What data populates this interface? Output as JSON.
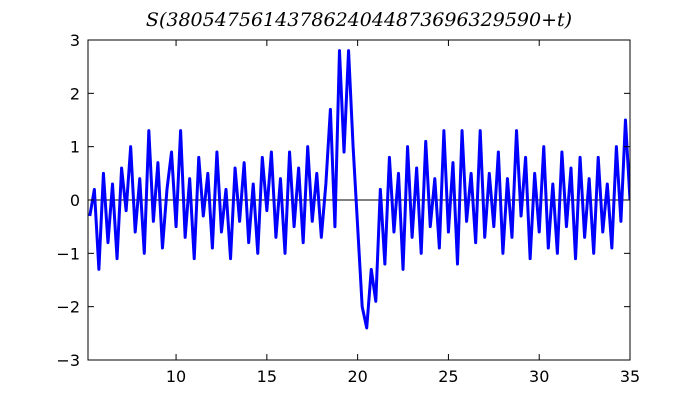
{
  "chart_data": {
    "type": "line",
    "title": "S(3805475614378624044873696329590+t)",
    "x": [
      5.25,
      5.5,
      5.75,
      6,
      6.25,
      6.5,
      6.75,
      7,
      7.25,
      7.5,
      7.75,
      8,
      8.25,
      8.5,
      8.75,
      9,
      9.25,
      9.5,
      9.75,
      10,
      10.25,
      10.5,
      10.75,
      11,
      11.25,
      11.5,
      11.75,
      12,
      12.25,
      12.5,
      12.75,
      13,
      13.25,
      13.5,
      13.75,
      14,
      14.25,
      14.5,
      14.75,
      15,
      15.25,
      15.5,
      15.75,
      16,
      16.25,
      16.5,
      16.75,
      17,
      17.25,
      17.5,
      17.75,
      18,
      18.25,
      18.5,
      18.75,
      19,
      19.25,
      19.5,
      19.75,
      20,
      20.25,
      20.5,
      20.75,
      21,
      21.25,
      21.5,
      21.75,
      22,
      22.25,
      22.5,
      22.75,
      23,
      23.25,
      23.5,
      23.75,
      24,
      24.25,
      24.5,
      24.75,
      25,
      25.25,
      25.5,
      25.75,
      26,
      26.25,
      26.5,
      26.75,
      27,
      27.25,
      27.5,
      27.75,
      28,
      28.25,
      28.5,
      28.75,
      29,
      29.25,
      29.5,
      29.75,
      30,
      30.25,
      30.5,
      30.75,
      31,
      31.25,
      31.5,
      31.75,
      32,
      32.25,
      32.5,
      32.75,
      33,
      33.25,
      33.5,
      33.75,
      34,
      34.25,
      34.5,
      34.75,
      35
    ],
    "series": [
      {
        "color": "#0000ff",
        "values": [
          -0.3,
          0.2,
          -1.3,
          0.5,
          -0.8,
          0.3,
          -1.1,
          0.6,
          -0.2,
          1.0,
          -0.6,
          0.4,
          -1.0,
          1.3,
          -0.4,
          0.7,
          -0.9,
          0.2,
          0.9,
          -0.5,
          1.3,
          -0.7,
          0.4,
          -1.1,
          0.8,
          -0.3,
          0.5,
          -0.9,
          0.9,
          -0.6,
          0.2,
          -1.1,
          0.6,
          -0.4,
          0.7,
          -0.8,
          0.3,
          -1.0,
          0.8,
          -0.2,
          0.9,
          -0.7,
          0.4,
          -1.0,
          0.9,
          -0.5,
          0.6,
          -0.8,
          1.0,
          -0.4,
          0.5,
          -0.7,
          0.3,
          1.7,
          -0.5,
          2.8,
          0.9,
          2.8,
          1.0,
          -0.5,
          -2.0,
          -2.4,
          -1.3,
          -1.9,
          0.2,
          -1.2,
          0.8,
          -0.6,
          0.5,
          -1.3,
          1.0,
          -0.7,
          0.6,
          -1.0,
          1.1,
          -0.5,
          0.4,
          -0.9,
          1.3,
          -0.6,
          0.7,
          -1.2,
          1.3,
          -0.4,
          0.5,
          -0.8,
          1.3,
          -0.7,
          0.5,
          -0.5,
          0.9,
          -1.0,
          0.4,
          -0.7,
          1.3,
          -0.3,
          0.8,
          -1.1,
          0.5,
          -0.6,
          1.0,
          -0.9,
          0.3,
          -1.0,
          0.9,
          -0.5,
          0.6,
          -1.1,
          0.8,
          -0.7,
          0.4,
          -1.0,
          0.8,
          -0.6,
          0.3,
          -0.9,
          1.0,
          -0.4,
          1.5,
          0.0
        ]
      }
    ],
    "baseline": {
      "color": "#000000",
      "value": 0
    },
    "xlim": [
      5.15,
      35
    ],
    "ylim": [
      -3,
      3
    ],
    "xticks": [
      10,
      15,
      20,
      25,
      30,
      35
    ],
    "yticks": [
      {
        "value": -3,
        "label": "−3"
      },
      {
        "value": -2,
        "label": "−2"
      },
      {
        "value": -1,
        "label": "−1"
      },
      0,
      1,
      2,
      3
    ],
    "grid": false
  }
}
